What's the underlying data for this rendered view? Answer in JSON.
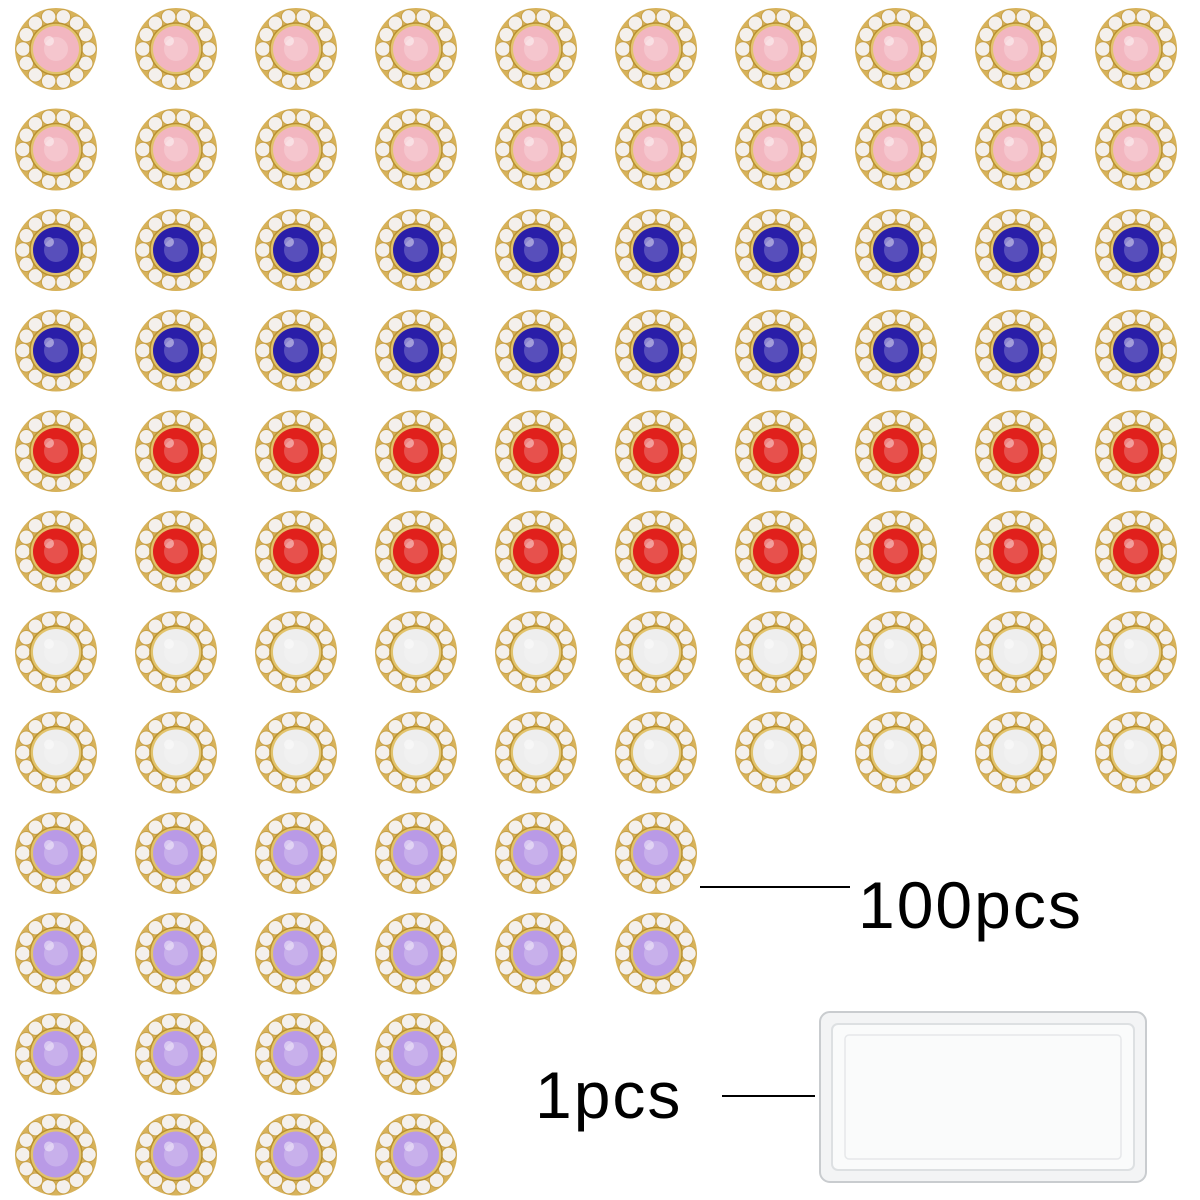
{
  "labels": {
    "flowers_count": "100pcs",
    "box_count": "1pcs"
  }
}
